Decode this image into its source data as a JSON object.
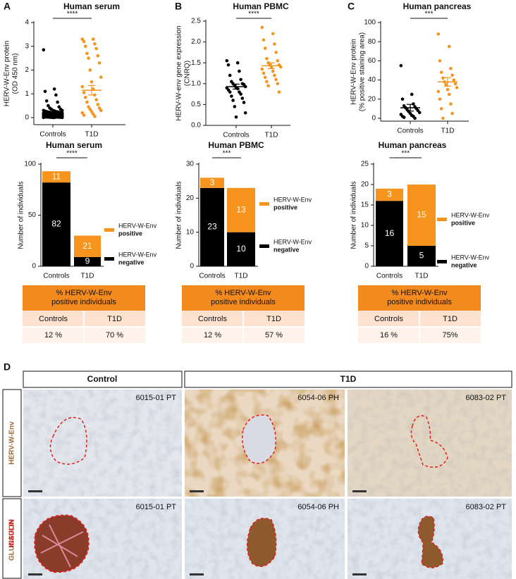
{
  "chart_data": [
    {
      "type": "scatter",
      "panel": "A",
      "title": "Human serum",
      "ylabel": [
        "HERV-W-Env protein",
        "(OD 450 nm)"
      ],
      "categories": [
        "Controls",
        "T1D"
      ],
      "ylim": [
        -0.3,
        4
      ],
      "yticks": [
        0,
        1,
        2,
        3,
        4
      ],
      "significance": "****",
      "groups": [
        {
          "color": "#000000",
          "mean": 0.15,
          "sem": 0.05,
          "values": [
            2.85,
            1.2,
            1.1,
            0.95,
            0.7,
            0.65,
            0.5,
            0.45,
            0.4,
            0.35,
            0.35,
            0.3,
            0.3,
            0.3,
            0.28,
            0.27,
            0.25,
            0.25,
            0.24,
            0.23,
            0.22,
            0.22,
            0.21,
            0.2,
            0.2,
            0.2,
            0.19,
            0.19,
            0.18,
            0.18,
            0.17,
            0.17,
            0.16,
            0.16,
            0.15,
            0.15,
            0.15,
            0.14,
            0.14,
            0.14,
            0.13,
            0.13,
            0.13,
            0.12,
            0.12,
            0.12,
            0.11,
            0.11,
            0.11,
            0.1,
            0.1,
            0.1,
            0.1,
            0.09,
            0.09,
            0.09,
            0.09,
            0.08,
            0.08,
            0.08,
            0.08,
            0.07,
            0.07,
            0.07,
            0.07,
            0.06,
            0.06,
            0.06,
            0.06,
            0.05,
            0.05,
            0.05,
            0.05,
            0.04,
            0.04,
            0.04,
            0.04,
            0.03,
            0.03,
            0.03,
            0.03,
            0.02,
            0.02,
            0.02,
            0.02,
            0.01,
            0.01,
            0.01,
            0.01,
            0,
            0,
            0,
            0
          ]
        },
        {
          "color": "#f7941d",
          "mean": 1.15,
          "sem": 0.2,
          "values": [
            3.3,
            3.3,
            3.2,
            3.1,
            3.0,
            2.9,
            2.7,
            2.6,
            2.5,
            2.3,
            2.0,
            1.7,
            1.5,
            1.3,
            1.2,
            1.05,
            0.95,
            0.85,
            0.75,
            0.65,
            0.55,
            0.45,
            0.4,
            0.35,
            0.3,
            0.25,
            0.2,
            0.15,
            0.1,
            0.05
          ]
        }
      ]
    },
    {
      "type": "scatter",
      "panel": "B",
      "title": "Human PBMC",
      "ylabel": [
        "HERV-W-env gene expression",
        "(CNRQ)"
      ],
      "categories": [
        "Controls",
        "T1D"
      ],
      "ylim": [
        0,
        2.5
      ],
      "yticks": [
        {
          "value": 0,
          "label": "0.0"
        },
        0.5,
        {
          "value": 1,
          "label": "1.0"
        },
        1.5,
        {
          "value": 2,
          "label": "2.0"
        },
        2.5
      ],
      "significance": "****",
      "groups": [
        {
          "color": "#000000",
          "mean": 0.93,
          "sem": 0.06,
          "values": [
            1.55,
            1.5,
            1.45,
            1.3,
            1.2,
            1.1,
            1.05,
            1.0,
            1.0,
            0.98,
            0.95,
            0.93,
            0.9,
            0.9,
            0.88,
            0.85,
            0.8,
            0.8,
            0.75,
            0.7,
            0.65,
            0.6,
            0.55,
            0.45,
            0.3,
            0.2
          ]
        },
        {
          "color": "#f7941d",
          "mean": 1.43,
          "sem": 0.07,
          "values": [
            2.35,
            2.2,
            2.05,
            1.95,
            1.85,
            1.75,
            1.6,
            1.55,
            1.5,
            1.45,
            1.45,
            1.4,
            1.4,
            1.35,
            1.3,
            1.25,
            1.2,
            1.15,
            1.1,
            1.05,
            1.0,
            0.95,
            0.8
          ]
        }
      ]
    },
    {
      "type": "scatter",
      "panel": "C",
      "title": "Human pancreas",
      "ylabel": [
        "HERV-W-Env protein",
        "(% positive staining area)"
      ],
      "categories": [
        "Controls",
        "T1D"
      ],
      "ylim": [
        -3,
        100
      ],
      "yticks": [
        0,
        20,
        40,
        60,
        80,
        100
      ],
      "significance": "***",
      "groups": [
        {
          "color": "#000000",
          "mean": 11,
          "sem": 3.5,
          "values": [
            55,
            25,
            20,
            15,
            13,
            12,
            11,
            10,
            9,
            8,
            7,
            6,
            5,
            4,
            3,
            2,
            2,
            1,
            0
          ]
        },
        {
          "color": "#f7941d",
          "mean": 38,
          "sem": 4.5,
          "values": [
            88,
            75,
            60,
            52,
            48,
            45,
            42,
            40,
            38,
            36,
            35,
            32,
            30,
            28,
            25,
            20,
            15,
            10,
            5,
            0
          ]
        }
      ]
    },
    {
      "type": "bar",
      "title": "Human serum",
      "ylabel": "Number of individuals",
      "categories": [
        "Controls",
        "T1D"
      ],
      "ylim": [
        0,
        100
      ],
      "yticks": [
        0,
        50,
        100
      ],
      "significance": "****",
      "legend_label": "HERV-W-Env",
      "series": [
        {
          "name": "negative",
          "color": "#000000",
          "values": [
            82,
            9
          ]
        },
        {
          "name": "positive",
          "color": "#f7941d",
          "values": [
            11,
            21
          ]
        }
      ]
    },
    {
      "type": "bar",
      "title": "Human PBMC",
      "ylabel": "Number of individuals",
      "categories": [
        "Controls",
        "T1D"
      ],
      "ylim": [
        0,
        30
      ],
      "yticks": [
        0,
        10,
        20,
        30
      ],
      "significance": "***",
      "legend_label": "HERV-W-Env",
      "series": [
        {
          "name": "negative",
          "color": "#000000",
          "values": [
            23,
            10
          ]
        },
        {
          "name": "positive",
          "color": "#f7941d",
          "values": [
            3,
            13
          ]
        }
      ]
    },
    {
      "type": "bar",
      "title": "Human pancreas",
      "ylabel": "Number of individuals",
      "categories": [
        "Controls",
        "T1D"
      ],
      "ylim": [
        0,
        25
      ],
      "yticks": [
        0,
        5,
        10,
        15,
        20,
        25
      ],
      "significance": "***",
      "legend_label": "HERV-W-Env",
      "series": [
        {
          "name": "negative",
          "color": "#000000",
          "values": [
            16,
            5
          ]
        },
        {
          "name": "positive",
          "color": "#f7941d",
          "values": [
            3,
            15
          ]
        }
      ]
    }
  ],
  "tables": [
    {
      "header": [
        "% HERV-W-Env",
        "positive individuals"
      ],
      "columns": [
        "Controls",
        "T1D"
      ],
      "cells": [
        "12 %",
        "70 %"
      ]
    },
    {
      "header": [
        "% HERV-W-Env",
        "positive individuals"
      ],
      "columns": [
        "Controls",
        "T1D"
      ],
      "cells": [
        "12 %",
        "57 %"
      ]
    },
    {
      "header": [
        "% HERV-W-Env",
        "positive individuals"
      ],
      "columns": [
        "Controls",
        "T1D"
      ],
      "cells": [
        "16 %",
        "75%"
      ]
    }
  ],
  "panel_d": {
    "label": "D",
    "column_headers": [
      "Control",
      "T1D"
    ],
    "row_labels": [
      [
        "HERV-W-Env"
      ],
      [
        "GLUCAGON",
        "INSULIN"
      ]
    ],
    "captions": [
      [
        "6015-01 PT",
        "6054-06 PH",
        "6083-02 PT"
      ],
      [
        "6015-01 PT",
        "6054-06 PH",
        "6083-02 PT"
      ]
    ]
  }
}
